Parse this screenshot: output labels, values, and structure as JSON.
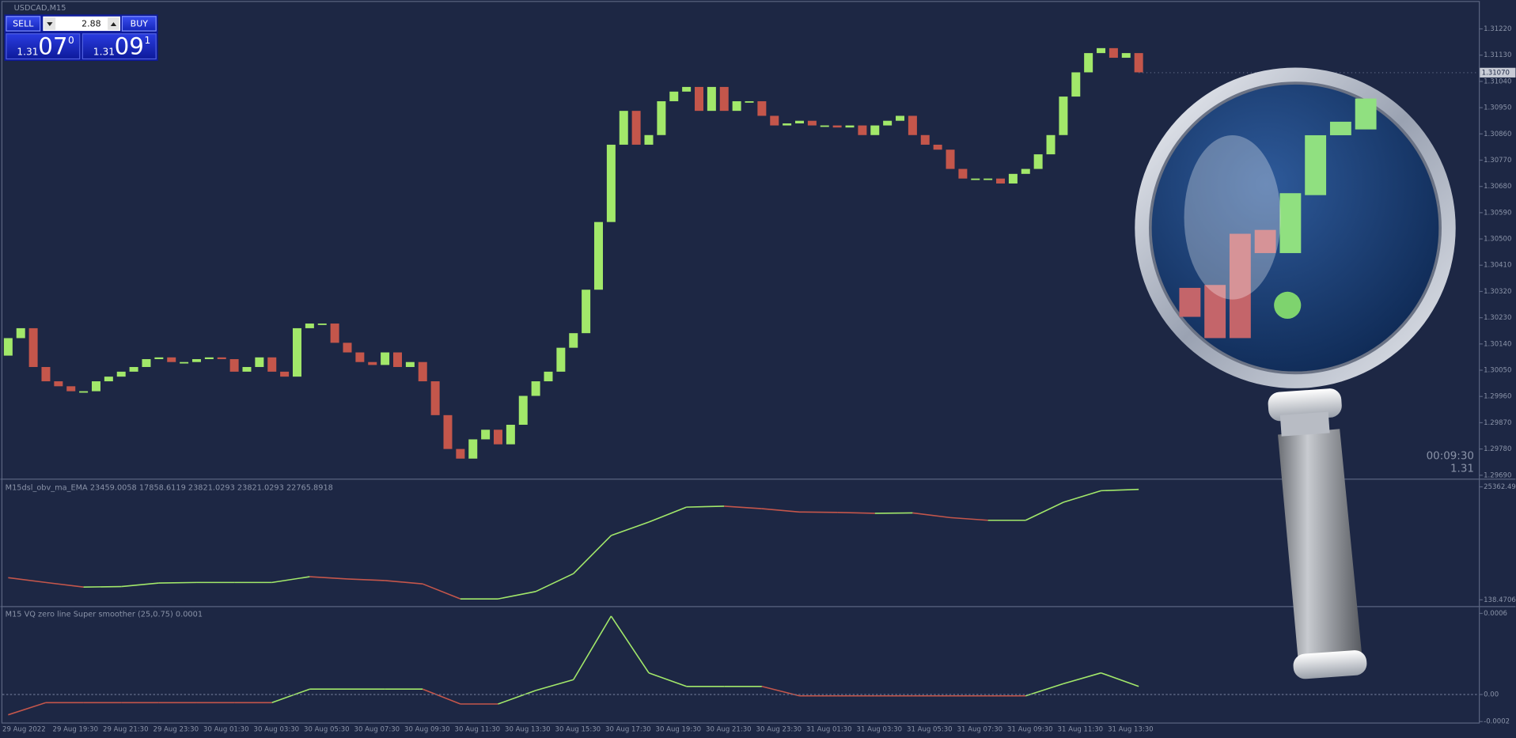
{
  "header": {
    "symbol": "USDCAD,M15"
  },
  "trade_panel": {
    "sell": "SELL",
    "buy": "BUY",
    "lot": "2.88",
    "bid": {
      "big": "1.31",
      "main": "07",
      "small": "0"
    },
    "ask": {
      "big": "1.31",
      "main": "09",
      "small": "1"
    }
  },
  "price_panel": {
    "ylim": [
      1.2968,
      1.31319
    ],
    "yticks": [
      {
        "value": 1.3122,
        "label": "1.31220"
      },
      {
        "value": 1.3113,
        "label": "1.31130"
      },
      {
        "value": 1.3104,
        "label": "1.31040"
      },
      {
        "value": 1.3095,
        "label": "1.30950"
      },
      {
        "value": 1.3086,
        "label": "1.30860"
      },
      {
        "value": 1.3077,
        "label": "1.30770"
      },
      {
        "value": 1.3068,
        "label": "1.30680"
      },
      {
        "value": 1.3059,
        "label": "1.30590"
      },
      {
        "value": 1.305,
        "label": "1.30500"
      },
      {
        "value": 1.3041,
        "label": "1.30410"
      },
      {
        "value": 1.3032,
        "label": "1.30320"
      },
      {
        "value": 1.3023,
        "label": "1.30230"
      },
      {
        "value": 1.3014,
        "label": "1.30140"
      },
      {
        "value": 1.3005,
        "label": "1.30050"
      },
      {
        "value": 1.2996,
        "label": "1.29960"
      },
      {
        "value": 1.2987,
        "label": "1.29870"
      },
      {
        "value": 1.2978,
        "label": "1.29780"
      },
      {
        "value": 1.2969,
        "label": "1.29690"
      }
    ],
    "current_price": {
      "value": 1.3107,
      "label": "1.31070"
    },
    "timer": "00:09:30",
    "timer_price": "1.31",
    "up_color": "#a2e86a",
    "down_color": "#c4564b",
    "first_open": 1.301,
    "closes": [
      1.3016,
      1.30194,
      1.30061,
      1.30012,
      1.29995,
      1.29978,
      1.29978,
      1.30012,
      1.30028,
      1.30045,
      1.30061,
      1.30088,
      1.30094,
      1.30078,
      1.30078,
      1.30088,
      1.30094,
      1.30088,
      1.30045,
      1.30061,
      1.30094,
      1.30045,
      1.30028,
      1.30194,
      1.3021,
      1.3021,
      1.30144,
      1.30111,
      1.30078,
      1.30068,
      1.30111,
      1.30061,
      1.30078,
      1.30012,
      1.29896,
      1.2978,
      1.29747,
      1.29813,
      1.29846,
      1.29796,
      1.29863,
      1.29962,
      1.30012,
      1.30045,
      1.30127,
      1.30177,
      1.30326,
      1.30558,
      1.30823,
      1.30939,
      1.30823,
      1.30856,
      1.30972,
      1.31005,
      1.31021,
      1.30939,
      1.31021,
      1.30939,
      1.30972,
      1.30972,
      1.30922,
      1.30889,
      1.30896,
      1.30905,
      1.30889,
      1.30889,
      1.30882,
      1.30889,
      1.30856,
      1.30889,
      1.30905,
      1.30922,
      1.30856,
      1.30823,
      1.30806,
      1.3074,
      1.30707,
      1.30707,
      1.30707,
      1.3069,
      1.30723,
      1.3074,
      1.3079,
      1.30856,
      1.30988,
      1.31071,
      1.31137,
      1.31154,
      1.31121,
      1.31137,
      1.31071
    ]
  },
  "obv_panel": {
    "title": "M15dsl_obv_ma_EMA 23459.0058 17858.6119 23821.0293 23821.0293 22765.8918",
    "ylim": [
      138.4706,
      25362.492
    ],
    "yticks": [
      25362.492,
      138.4706
    ],
    "values": [
      5097,
      4019,
      3000,
      3100,
      3900,
      4019,
      4019,
      4019,
      5312,
      4800,
      4450,
      3700,
      354,
      354,
      2000,
      6000,
      14500,
      17500,
      20835,
      21051,
      20500,
      19750,
      19650,
      19450,
      19540,
      18500,
      17900,
      17900,
      21913,
      24500,
      24800
    ]
  },
  "vq_panel": {
    "title": "M15 VQ zero line Super smoother (25,0.75) 0.0001",
    "ylim": [
      -0.0002,
      0.0006
    ],
    "yticks": [
      0.0006,
      {
        "value": 0,
        "label": "0.00"
      },
      -0.0002
    ],
    "values": [
      -0.00015,
      -6e-05,
      -6e-05,
      -6e-05,
      -6e-05,
      -6e-05,
      -6e-05,
      -6e-05,
      4e-05,
      4e-05,
      4e-05,
      4e-05,
      -7e-05,
      -7e-05,
      3e-05,
      0.00011,
      0.00058,
      0.00016,
      6e-05,
      6e-05,
      6e-05,
      -1e-05,
      -1e-05,
      -1e-05,
      -1e-05,
      -1e-05,
      -1e-05,
      -1e-05,
      8e-05,
      0.00016,
      6e-05
    ]
  },
  "time_axis": {
    "labels": [
      "29 Aug 2022",
      "29 Aug 19:30",
      "29 Aug 21:30",
      "29 Aug 23:30",
      "30 Aug 01:30",
      "30 Aug 03:30",
      "30 Aug 05:30",
      "30 Aug 07:30",
      "30 Aug 09:30",
      "30 Aug 11:30",
      "30 Aug 13:30",
      "30 Aug 15:30",
      "30 Aug 17:30",
      "30 Aug 19:30",
      "30 Aug 21:30",
      "30 Aug 23:30",
      "31 Aug 01:30",
      "31 Aug 03:30",
      "31 Aug 05:30",
      "31 Aug 07:30",
      "31 Aug 09:30",
      "31 Aug 11:30",
      "31 Aug 13:30"
    ]
  }
}
